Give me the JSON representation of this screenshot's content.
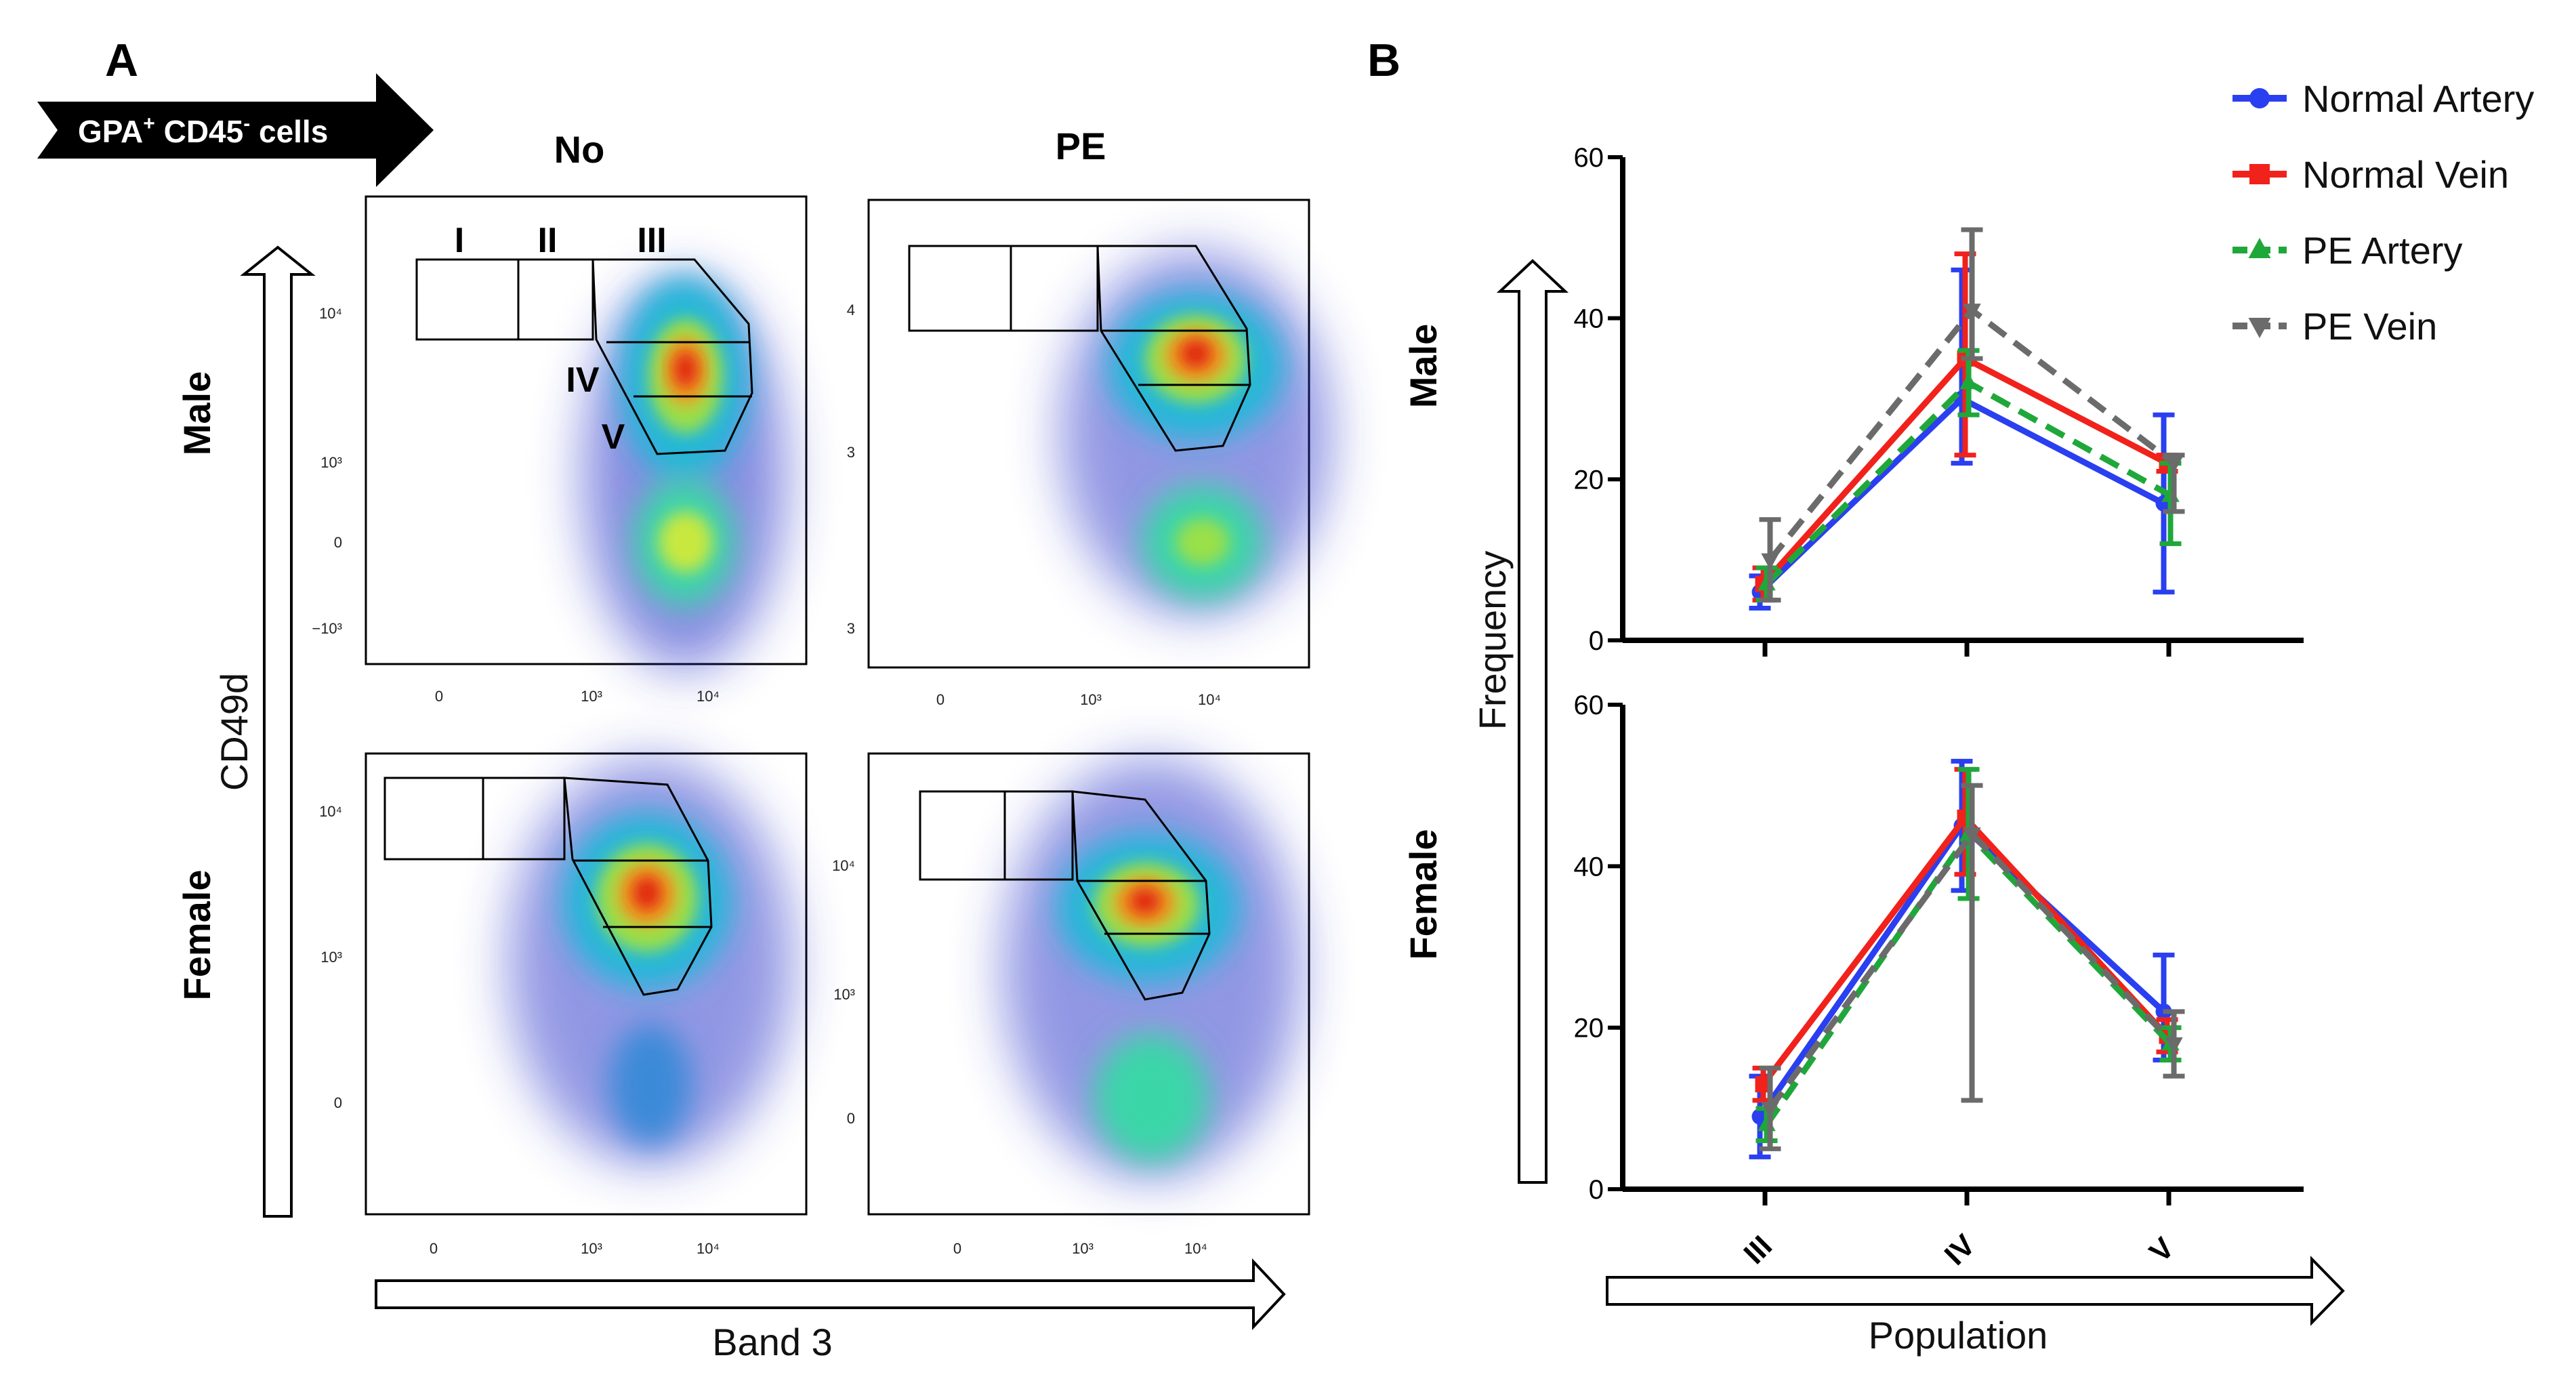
{
  "panel_a": {
    "letter": "A",
    "arrow": {
      "base": "GPA",
      "sup1": "+",
      "mid": " CD45",
      "sup2": "-",
      "tail": " cells"
    },
    "col_headers": [
      "No",
      "PE"
    ],
    "row_headers": [
      "Male",
      "Female"
    ],
    "ylabel": "CD49d",
    "xlabel": "Band 3",
    "gate_labels": [
      "I",
      "II",
      "III",
      "IV",
      "V"
    ],
    "plots": [
      {
        "id": "male-no",
        "yticks": [
          "10⁴",
          "10³",
          "0",
          "−10³"
        ],
        "xticks": [
          "0",
          "10³",
          "10⁴"
        ]
      },
      {
        "id": "male-pe",
        "yticks": [
          "4",
          "3",
          "3"
        ],
        "xticks": [
          "0",
          "10³",
          "10⁴"
        ]
      },
      {
        "id": "female-no",
        "yticks": [
          "10⁴",
          "10³",
          "0"
        ],
        "xticks": [
          "0",
          "10³",
          "10⁴"
        ]
      },
      {
        "id": "female-pe",
        "yticks": [
          "10⁴",
          "10³",
          "0"
        ],
        "xticks": [
          "0",
          "10³",
          "10⁴"
        ]
      }
    ]
  },
  "panel_b": {
    "letter": "B",
    "legend": [
      {
        "name": "Normal Artery",
        "color": "#2a3ff0",
        "marker": "circle",
        "dash": "solid"
      },
      {
        "name": "Normal Vein",
        "color": "#f0221b",
        "marker": "square",
        "dash": "solid"
      },
      {
        "name": "PE Artery",
        "color": "#1fa83a",
        "marker": "triangle-up",
        "dash": "dashed"
      },
      {
        "name": "PE Vein",
        "color": "#6b6b6b",
        "marker": "triangle-down",
        "dash": "dashed"
      }
    ],
    "ylabel": "Frequency",
    "xlabel": "Population"
  },
  "chart_data": [
    {
      "type": "scatter",
      "title": "",
      "row": "Male",
      "col": "No",
      "xlabel": "Band 3",
      "ylabel": "CD49d",
      "note": "flow cytometry density plot"
    },
    {
      "type": "scatter",
      "title": "",
      "row": "Male",
      "col": "PE",
      "xlabel": "Band 3",
      "ylabel": "CD49d"
    },
    {
      "type": "scatter",
      "title": "",
      "row": "Female",
      "col": "No",
      "xlabel": "Band 3",
      "ylabel": "CD49d"
    },
    {
      "type": "scatter",
      "title": "",
      "row": "Female",
      "col": "PE",
      "xlabel": "Band 3",
      "ylabel": "CD49d"
    },
    {
      "type": "line",
      "row_label": "Male",
      "categories": [
        "III",
        "IV",
        "V"
      ],
      "ylim": [
        0,
        60
      ],
      "yticks": [
        0,
        20,
        40,
        60
      ],
      "series": [
        {
          "name": "Normal Artery",
          "values": [
            6,
            30,
            17
          ],
          "err_low": [
            4,
            22,
            6
          ],
          "err_high": [
            8,
            46,
            28
          ]
        },
        {
          "name": "Normal Vein",
          "values": [
            7,
            35,
            22
          ],
          "err_low": [
            5,
            23,
            21
          ],
          "err_high": [
            9,
            48,
            23
          ]
        },
        {
          "name": "PE Artery",
          "values": [
            7,
            32,
            18
          ],
          "err_low": [
            5,
            28,
            12
          ],
          "err_high": [
            9,
            36,
            22
          ]
        },
        {
          "name": "PE Vein",
          "values": [
            10,
            41,
            22
          ],
          "err_low": [
            5,
            35,
            16
          ],
          "err_high": [
            15,
            51,
            23
          ]
        }
      ]
    },
    {
      "type": "line",
      "row_label": "Female",
      "categories": [
        "III",
        "IV",
        "V"
      ],
      "ylim": [
        0,
        60
      ],
      "yticks": [
        0,
        20,
        40,
        60
      ],
      "series": [
        {
          "name": "Normal Artery",
          "values": [
            9,
            45,
            22
          ],
          "err_low": [
            4,
            37,
            16
          ],
          "err_high": [
            14,
            53,
            29
          ]
        },
        {
          "name": "Normal Vein",
          "values": [
            13,
            46,
            19
          ],
          "err_low": [
            11,
            39,
            17
          ],
          "err_high": [
            15,
            52,
            21
          ]
        },
        {
          "name": "PE Artery",
          "values": [
            8,
            44,
            18
          ],
          "err_low": [
            6,
            36,
            16
          ],
          "err_high": [
            10,
            52,
            20
          ]
        },
        {
          "name": "PE Vein",
          "values": [
            10,
            44,
            18
          ],
          "err_low": [
            5,
            11,
            14
          ],
          "err_high": [
            15,
            50,
            22
          ]
        }
      ]
    }
  ]
}
